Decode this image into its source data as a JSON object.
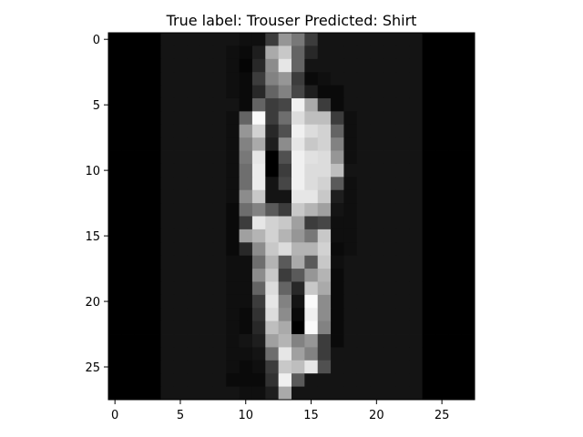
{
  "chart_data": {
    "type": "heatmap",
    "title": "True label: Trouser Predicted: Shirt",
    "xlabel": "",
    "ylabel": "",
    "colormap": "gray",
    "xlim": [
      -0.5,
      27.5
    ],
    "ylim": [
      27.5,
      -0.5
    ],
    "x_ticks": [
      0,
      5,
      10,
      15,
      20,
      25
    ],
    "y_ticks": [
      0,
      5,
      10,
      15,
      20,
      25
    ],
    "x_tick_labels": [
      "0",
      "5",
      "10",
      "15",
      "20",
      "25"
    ],
    "y_tick_labels": [
      "0",
      "5",
      "10",
      "15",
      "20",
      "25"
    ],
    "pixels": [
      [
        0,
        0,
        0,
        0,
        20,
        20,
        20,
        20,
        20,
        20,
        15,
        15,
        60,
        150,
        120,
        60,
        20,
        20,
        20,
        20,
        20,
        20,
        20,
        20,
        0,
        0,
        0,
        0
      ],
      [
        0,
        0,
        0,
        0,
        20,
        20,
        20,
        20,
        20,
        15,
        10,
        30,
        170,
        200,
        100,
        40,
        20,
        20,
        20,
        20,
        20,
        20,
        20,
        20,
        0,
        0,
        0,
        0
      ],
      [
        0,
        0,
        0,
        0,
        20,
        20,
        20,
        20,
        20,
        15,
        5,
        40,
        140,
        230,
        100,
        20,
        20,
        20,
        20,
        20,
        20,
        20,
        20,
        20,
        0,
        0,
        0,
        0
      ],
      [
        0,
        0,
        0,
        0,
        20,
        20,
        20,
        20,
        20,
        15,
        10,
        60,
        130,
        150,
        60,
        10,
        15,
        20,
        20,
        20,
        20,
        20,
        20,
        20,
        0,
        0,
        0,
        0
      ],
      [
        0,
        0,
        0,
        0,
        20,
        20,
        20,
        20,
        20,
        15,
        10,
        40,
        100,
        130,
        70,
        30,
        10,
        10,
        20,
        20,
        20,
        20,
        20,
        20,
        0,
        0,
        0,
        0
      ],
      [
        0,
        0,
        0,
        0,
        20,
        20,
        20,
        20,
        20,
        20,
        10,
        100,
        60,
        70,
        240,
        170,
        60,
        10,
        20,
        20,
        20,
        20,
        20,
        20,
        0,
        0,
        0,
        0
      ],
      [
        0,
        0,
        0,
        0,
        20,
        20,
        20,
        20,
        20,
        15,
        100,
        250,
        60,
        110,
        220,
        190,
        190,
        60,
        15,
        20,
        20,
        20,
        20,
        20,
        0,
        0,
        0,
        0
      ],
      [
        0,
        0,
        0,
        0,
        20,
        20,
        20,
        20,
        20,
        15,
        150,
        210,
        40,
        80,
        240,
        220,
        210,
        100,
        15,
        20,
        20,
        20,
        20,
        20,
        0,
        0,
        0,
        0
      ],
      [
        0,
        0,
        0,
        0,
        20,
        20,
        20,
        20,
        20,
        15,
        130,
        170,
        30,
        140,
        230,
        200,
        210,
        130,
        15,
        20,
        20,
        20,
        20,
        20,
        0,
        0,
        0,
        0
      ],
      [
        0,
        0,
        0,
        0,
        20,
        20,
        20,
        20,
        20,
        15,
        120,
        230,
        0,
        80,
        240,
        225,
        220,
        150,
        15,
        20,
        20,
        20,
        20,
        20,
        0,
        0,
        0,
        0
      ],
      [
        0,
        0,
        0,
        0,
        20,
        20,
        20,
        20,
        20,
        15,
        110,
        235,
        0,
        60,
        240,
        220,
        220,
        190,
        20,
        20,
        20,
        20,
        20,
        20,
        0,
        0,
        0,
        0
      ],
      [
        0,
        0,
        0,
        0,
        20,
        20,
        20,
        20,
        20,
        15,
        110,
        235,
        20,
        70,
        240,
        220,
        210,
        90,
        15,
        20,
        20,
        20,
        20,
        20,
        0,
        0,
        0,
        0
      ],
      [
        0,
        0,
        0,
        0,
        20,
        20,
        20,
        20,
        20,
        15,
        140,
        200,
        20,
        20,
        230,
        230,
        200,
        30,
        15,
        20,
        20,
        20,
        20,
        20,
        0,
        0,
        0,
        0
      ],
      [
        0,
        0,
        0,
        0,
        20,
        20,
        20,
        20,
        20,
        10,
        110,
        130,
        90,
        60,
        200,
        180,
        160,
        20,
        15,
        20,
        20,
        20,
        20,
        20,
        0,
        0,
        0,
        0
      ],
      [
        0,
        0,
        0,
        0,
        20,
        20,
        20,
        20,
        20,
        10,
        60,
        230,
        210,
        200,
        160,
        60,
        70,
        15,
        15,
        20,
        20,
        20,
        20,
        20,
        0,
        0,
        0,
        0
      ],
      [
        0,
        0,
        0,
        0,
        20,
        20,
        20,
        20,
        20,
        10,
        160,
        180,
        210,
        180,
        150,
        120,
        200,
        15,
        15,
        20,
        20,
        20,
        20,
        20,
        0,
        0,
        0,
        0
      ],
      [
        0,
        0,
        0,
        0,
        20,
        20,
        20,
        20,
        20,
        10,
        40,
        140,
        200,
        220,
        180,
        180,
        210,
        10,
        15,
        20,
        20,
        20,
        20,
        20,
        0,
        0,
        0,
        0
      ],
      [
        0,
        0,
        0,
        0,
        20,
        20,
        20,
        20,
        20,
        15,
        15,
        110,
        180,
        90,
        170,
        90,
        200,
        15,
        20,
        20,
        20,
        20,
        20,
        20,
        0,
        0,
        0,
        0
      ],
      [
        0,
        0,
        0,
        0,
        20,
        20,
        20,
        20,
        20,
        15,
        15,
        140,
        200,
        60,
        90,
        150,
        180,
        10,
        20,
        20,
        20,
        20,
        20,
        20,
        0,
        0,
        0,
        0
      ],
      [
        0,
        0,
        0,
        0,
        20,
        20,
        20,
        20,
        20,
        15,
        15,
        100,
        220,
        100,
        40,
        200,
        170,
        10,
        20,
        20,
        20,
        20,
        20,
        20,
        0,
        0,
        0,
        0
      ],
      [
        0,
        0,
        0,
        0,
        20,
        20,
        20,
        20,
        20,
        15,
        15,
        60,
        230,
        130,
        20,
        250,
        140,
        10,
        20,
        20,
        20,
        20,
        20,
        20,
        0,
        0,
        0,
        0
      ],
      [
        0,
        0,
        0,
        0,
        20,
        20,
        20,
        20,
        20,
        15,
        10,
        50,
        220,
        140,
        10,
        240,
        140,
        10,
        20,
        20,
        20,
        20,
        20,
        20,
        0,
        0,
        0,
        0
      ],
      [
        0,
        0,
        0,
        0,
        20,
        20,
        20,
        20,
        20,
        15,
        10,
        40,
        190,
        170,
        0,
        250,
        130,
        10,
        20,
        20,
        20,
        20,
        20,
        20,
        0,
        0,
        0,
        0
      ],
      [
        0,
        0,
        0,
        0,
        20,
        20,
        20,
        20,
        20,
        15,
        20,
        30,
        160,
        180,
        130,
        150,
        60,
        10,
        20,
        20,
        20,
        20,
        20,
        20,
        0,
        0,
        0,
        0
      ],
      [
        0,
        0,
        0,
        0,
        20,
        20,
        20,
        20,
        20,
        15,
        15,
        20,
        110,
        230,
        160,
        130,
        60,
        20,
        20,
        20,
        20,
        20,
        20,
        20,
        0,
        0,
        0,
        0
      ],
      [
        0,
        0,
        0,
        0,
        20,
        20,
        20,
        20,
        20,
        15,
        10,
        15,
        60,
        200,
        190,
        230,
        80,
        20,
        20,
        20,
        20,
        20,
        20,
        20,
        0,
        0,
        0,
        0
      ],
      [
        0,
        0,
        0,
        0,
        20,
        20,
        20,
        20,
        20,
        10,
        10,
        10,
        50,
        240,
        90,
        20,
        20,
        20,
        20,
        20,
        20,
        20,
        20,
        20,
        0,
        0,
        0,
        0
      ],
      [
        0,
        0,
        0,
        0,
        20,
        20,
        20,
        20,
        20,
        20,
        15,
        15,
        30,
        170,
        20,
        20,
        20,
        20,
        20,
        20,
        20,
        20,
        20,
        20,
        0,
        0,
        0,
        0
      ]
    ]
  }
}
